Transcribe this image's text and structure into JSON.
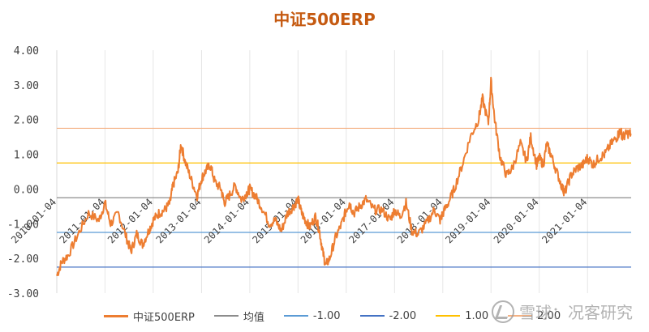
{
  "chart_data": {
    "type": "line",
    "title": "中证500ERP",
    "xlabel": "",
    "ylabel": "",
    "ylim": [
      -3,
      4
    ],
    "ytick_labels": [
      "4.00",
      "3.00",
      "2.00",
      "1.00",
      "0.00",
      "-1.00",
      "-2.00",
      "-3.00"
    ],
    "x_tick_labels": [
      "2010-01-04",
      "2011-01-04",
      "2012-01-04",
      "2013-01-04",
      "2014-01-04",
      "2015-01-04",
      "2016-01-04",
      "2017-01-04",
      "2018-01-04",
      "2019-01-04",
      "2020-01-04",
      "2021-01-04"
    ],
    "x_range": [
      "2010-01-04",
      "2021-11-30"
    ],
    "grid": "vertical",
    "series": [
      {
        "name": "中证500ERP",
        "color": "#ed7d31",
        "x": [
          "2010-01-04",
          "2010-02-10",
          "2010-04-01",
          "2010-06-15",
          "2010-09-01",
          "2010-11-20",
          "2011-01-04",
          "2011-02-15",
          "2011-04-15",
          "2011-06-15",
          "2011-07-20",
          "2011-09-01",
          "2011-10-15",
          "2011-12-01",
          "2012-01-04",
          "2012-02-15",
          "2012-04-01",
          "2012-05-10",
          "2012-06-01",
          "2012-07-10",
          "2012-08-01",
          "2012-09-01",
          "2012-10-15",
          "2012-12-01",
          "2013-01-04",
          "2013-02-01",
          "2013-03-10",
          "2013-04-15",
          "2013-06-01",
          "2013-06-25",
          "2013-08-01",
          "2013-09-15",
          "2013-11-01",
          "2013-12-15",
          "2014-01-04",
          "2014-02-15",
          "2014-04-01",
          "2014-06-01",
          "2014-07-15",
          "2014-09-01",
          "2014-10-15",
          "2014-12-01",
          "2015-01-04",
          "2015-02-01",
          "2015-03-01",
          "2015-04-01",
          "2015-05-15",
          "2015-06-15",
          "2015-07-10",
          "2015-08-01",
          "2015-09-01",
          "2015-10-15",
          "2015-12-01",
          "2016-01-04",
          "2016-01-28",
          "2016-03-01",
          "2016-04-15",
          "2016-06-01",
          "2016-08-01",
          "2016-10-01",
          "2016-12-01",
          "2017-01-04",
          "2017-02-15",
          "2017-04-01",
          "2017-05-15",
          "2017-07-01",
          "2017-09-01",
          "2017-11-01",
          "2017-12-15",
          "2018-01-04",
          "2018-02-15",
          "2018-04-01",
          "2018-06-01",
          "2018-08-01",
          "2018-10-01",
          "2018-11-01",
          "2018-12-15",
          "2019-01-04",
          "2019-02-01",
          "2019-03-15",
          "2019-05-01",
          "2019-06-15",
          "2019-08-15",
          "2019-10-01",
          "2019-11-01",
          "2019-12-15",
          "2020-01-04",
          "2020-02-04",
          "2020-03-01",
          "2020-04-01",
          "2020-05-15",
          "2020-07-01",
          "2020-07-15",
          "2020-09-01",
          "2020-10-15",
          "2020-12-01",
          "2021-01-04",
          "2021-02-15",
          "2021-04-01",
          "2021-05-15",
          "2021-07-01",
          "2021-08-15",
          "2021-09-10",
          "2021-09-25",
          "2021-11-01",
          "2021-11-30"
        ],
        "values": [
          -2.5,
          -2.1,
          -1.9,
          -1.3,
          -0.7,
          -0.9,
          -0.4,
          -1.0,
          -0.7,
          -1.4,
          -1.8,
          -1.3,
          -1.6,
          -1.2,
          -0.9,
          -0.7,
          -0.6,
          -0.4,
          0.1,
          0.5,
          1.3,
          0.8,
          0.3,
          -0.2,
          0.3,
          0.5,
          0.7,
          0.2,
          0.0,
          -0.4,
          -0.2,
          0.1,
          -0.3,
          -0.1,
          0.0,
          -0.2,
          -0.5,
          -1.0,
          -0.9,
          -1.2,
          -0.7,
          -0.5,
          -0.3,
          -0.7,
          -0.9,
          -1.1,
          -0.8,
          -1.2,
          -1.8,
          -2.2,
          -2.0,
          -1.4,
          -1.0,
          -0.6,
          -0.4,
          -0.7,
          -0.5,
          -0.3,
          -0.6,
          -0.6,
          -0.9,
          -0.6,
          -0.8,
          -0.4,
          -1.2,
          -1.3,
          -1.0,
          -0.6,
          -0.9,
          -0.7,
          -0.4,
          0.0,
          0.7,
          1.5,
          2.0,
          2.6,
          1.9,
          3.1,
          2.0,
          0.9,
          0.4,
          0.6,
          1.3,
          0.8,
          1.5,
          0.7,
          0.9,
          0.7,
          1.3,
          1.0,
          0.5,
          0.0,
          -0.1,
          0.4,
          0.6,
          0.7,
          0.9,
          0.7,
          0.9,
          1.0,
          1.3,
          1.5,
          1.7,
          1.5,
          1.6,
          1.6
        ]
      },
      {
        "name": "均值",
        "color": "#8c8c8c",
        "constant": -0.25
      },
      {
        "name": "-1.00",
        "color": "#5b9bd5",
        "constant": -1.25
      },
      {
        "name": "-2.00",
        "color": "#4472c4",
        "constant": -2.25
      },
      {
        "name": "1.00",
        "color": "#ffc000",
        "constant": 0.75
      },
      {
        "name": "2.00",
        "color": "#f4b183",
        "constant": 1.75
      }
    ]
  },
  "watermark": {
    "logo_text": "雪球",
    "text": "雪球：况客研究"
  }
}
